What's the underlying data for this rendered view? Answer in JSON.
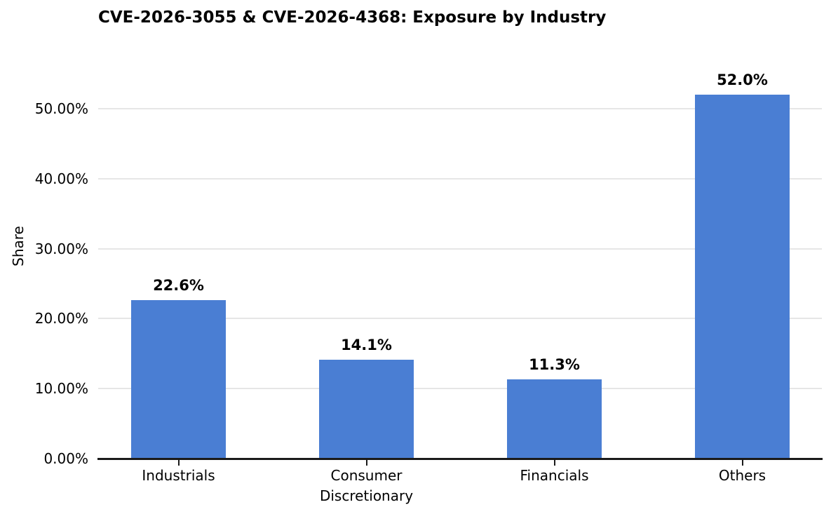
{
  "chart_data": {
    "type": "bar",
    "title": "CVE-2026-3055 & CVE-2026-4368: Exposure by Industry",
    "ylabel": "Share",
    "xlabel": "",
    "categories": [
      "Industrials",
      "Consumer\nDiscretionary",
      "Financials",
      "Others"
    ],
    "values": [
      22.6,
      14.1,
      11.3,
      52.0
    ],
    "value_labels": [
      "22.6%",
      "14.1%",
      "11.3%",
      "52.0%"
    ],
    "yticks": [
      {
        "value": 0,
        "label": "0.00%"
      },
      {
        "value": 10,
        "label": "10.00%"
      },
      {
        "value": 20,
        "label": "20.00%"
      },
      {
        "value": 30,
        "label": "30.00%"
      },
      {
        "value": 40,
        "label": "40.00%"
      },
      {
        "value": 50,
        "label": "50.00%"
      }
    ],
    "ylim": [
      0,
      56
    ],
    "grid": "horizontal",
    "legend": null,
    "colors": {
      "bar": "#4a7ed3",
      "grid": "#e6e6e6",
      "axis": "#1a1a1a",
      "text": "#000000",
      "background": "#ffffff"
    }
  }
}
